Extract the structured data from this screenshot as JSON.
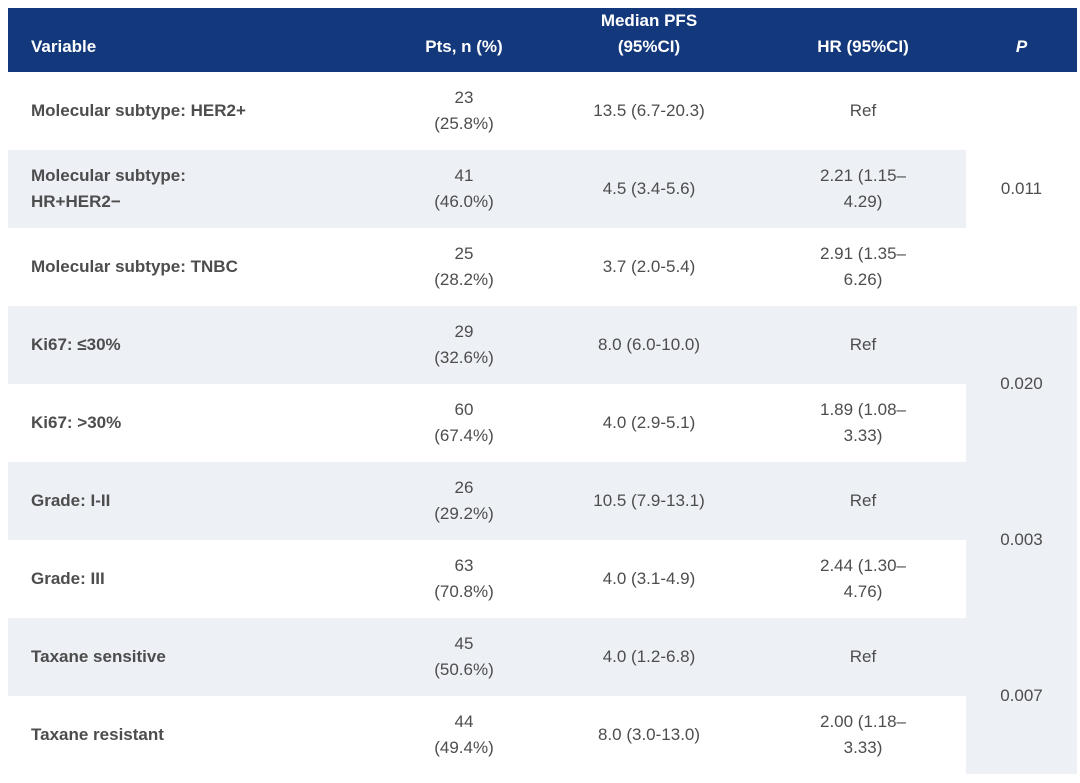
{
  "table": {
    "header": {
      "variable": "Variable",
      "pts": "Pts, n (%)",
      "pfs_line1": "Median PFS",
      "pfs_line2": "(95%CI)",
      "hr": "HR (95%CI)",
      "p": "P"
    },
    "colors": {
      "header_bg": "#13387b",
      "header_text": "#ffffff",
      "stripe_bg": "#edf0f5",
      "row_bg": "#ffffff",
      "body_text": "#4d4d4d"
    },
    "groups": [
      {
        "p_value": "0.011",
        "rows": [
          {
            "variable_line1": "Molecular subtype: HER2+",
            "variable_line2": "",
            "pts_n": "23",
            "pts_pct": "(25.8%)",
            "pfs": "13.5 (6.7-20.3)",
            "hr_line1": "Ref",
            "hr_line2": ""
          },
          {
            "variable_line1": "Molecular subtype:",
            "variable_line2": "HR+HER2−",
            "pts_n": "41",
            "pts_pct": "(46.0%)",
            "pfs": "4.5 (3.4-5.6)",
            "hr_line1": "2.21 (1.15–",
            "hr_line2": "4.29)"
          },
          {
            "variable_line1": "Molecular subtype: TNBC",
            "variable_line2": "",
            "pts_n": "25",
            "pts_pct": "(28.2%)",
            "pfs": "3.7 (2.0-5.4)",
            "hr_line1": "2.91 (1.35–",
            "hr_line2": "6.26)"
          }
        ]
      },
      {
        "p_value": "0.020",
        "rows": [
          {
            "variable_line1": "Ki67: ≤30%",
            "variable_line2": "",
            "pts_n": "29",
            "pts_pct": "(32.6%)",
            "pfs": "8.0 (6.0-10.0)",
            "hr_line1": "Ref",
            "hr_line2": ""
          },
          {
            "variable_line1": "Ki67: >30%",
            "variable_line2": "",
            "pts_n": "60",
            "pts_pct": "(67.4%)",
            "pfs": "4.0 (2.9-5.1)",
            "hr_line1": "1.89 (1.08–",
            "hr_line2": "3.33)"
          }
        ]
      },
      {
        "p_value": "0.003",
        "rows": [
          {
            "variable_line1": "Grade: I-II",
            "variable_line2": "",
            "pts_n": "26",
            "pts_pct": "(29.2%)",
            "pfs": "10.5 (7.9-13.1)",
            "hr_line1": "Ref",
            "hr_line2": ""
          },
          {
            "variable_line1": "Grade: III",
            "variable_line2": "",
            "pts_n": "63",
            "pts_pct": "(70.8%)",
            "pfs": "4.0 (3.1-4.9)",
            "hr_line1": "2.44 (1.30–",
            "hr_line2": "4.76)"
          }
        ]
      },
      {
        "p_value": "0.007",
        "rows": [
          {
            "variable_line1": "Taxane sensitive",
            "variable_line2": "",
            "pts_n": "45",
            "pts_pct": "(50.6%)",
            "pfs": "4.0 (1.2-6.8)",
            "hr_line1": "Ref",
            "hr_line2": ""
          },
          {
            "variable_line1": "Taxane resistant",
            "variable_line2": "",
            "pts_n": "44",
            "pts_pct": "(49.4%)",
            "pfs": "8.0 (3.0-13.0)",
            "hr_line1": "2.00 (1.18–",
            "hr_line2": "3.33)"
          }
        ]
      }
    ]
  }
}
